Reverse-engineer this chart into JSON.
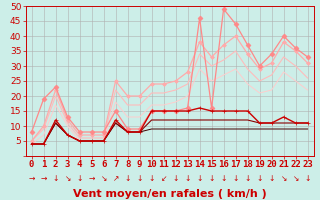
{
  "background_color": "#cceee8",
  "grid_color": "#b0b0b0",
  "xlabel": "Vent moyen/en rafales ( km/h )",
  "xlim": [
    -0.5,
    23.5
  ],
  "ylim": [
    0,
    50
  ],
  "yticks": [
    0,
    5,
    10,
    15,
    20,
    25,
    30,
    35,
    40,
    45,
    50
  ],
  "xticks": [
    0,
    1,
    2,
    3,
    4,
    5,
    6,
    7,
    8,
    9,
    10,
    11,
    12,
    13,
    14,
    15,
    16,
    17,
    18,
    19,
    20,
    21,
    22,
    23
  ],
  "series": [
    {
      "x": [
        0,
        1,
        2,
        3,
        4,
        5,
        6,
        7,
        8,
        9,
        10,
        11,
        12,
        13,
        14,
        15,
        16,
        17,
        18,
        19,
        20,
        21,
        22,
        23
      ],
      "y": [
        4,
        4,
        12,
        7,
        5,
        5,
        5,
        12,
        8,
        8,
        15,
        15,
        15,
        15,
        16,
        15,
        15,
        15,
        15,
        11,
        11,
        13,
        11,
        11
      ],
      "color": "#cc0000",
      "linewidth": 1.0,
      "marker": "+",
      "markersize": 3.5,
      "zorder": 5
    },
    {
      "x": [
        0,
        1,
        2,
        3,
        4,
        5,
        6,
        7,
        8,
        9,
        10,
        11,
        12,
        13,
        14,
        15,
        16,
        17,
        18,
        19,
        20,
        21,
        22,
        23
      ],
      "y": [
        4,
        4,
        11,
        7,
        5,
        5,
        5,
        11,
        8,
        8,
        12,
        12,
        12,
        12,
        12,
        12,
        12,
        12,
        12,
        11,
        11,
        11,
        11,
        11
      ],
      "color": "#880000",
      "linewidth": 0.8,
      "marker": null,
      "markersize": 0,
      "zorder": 4
    },
    {
      "x": [
        0,
        1,
        2,
        3,
        4,
        5,
        6,
        7,
        8,
        9,
        10,
        11,
        12,
        13,
        14,
        15,
        16,
        17,
        18,
        19,
        20,
        21,
        22,
        23
      ],
      "y": [
        4,
        4,
        11,
        7,
        5,
        5,
        5,
        11,
        8,
        8,
        9,
        9,
        9,
        9,
        9,
        9,
        9,
        9,
        9,
        9,
        9,
        9,
        9,
        9
      ],
      "color": "#440000",
      "linewidth": 0.7,
      "marker": null,
      "markersize": 0,
      "zorder": 3
    },
    {
      "x": [
        0,
        1,
        2,
        3,
        4,
        5,
        6,
        7,
        8,
        9,
        10,
        11,
        12,
        13,
        14,
        15,
        16,
        17,
        18,
        19,
        20,
        21,
        22,
        23
      ],
      "y": [
        8,
        19,
        23,
        13,
        8,
        8,
        8,
        15,
        9,
        9,
        15,
        15,
        15,
        16,
        46,
        16,
        49,
        44,
        37,
        30,
        34,
        40,
        36,
        33
      ],
      "color": "#ff8888",
      "linewidth": 0.9,
      "marker": "D",
      "markersize": 2.5,
      "zorder": 2
    },
    {
      "x": [
        0,
        1,
        2,
        3,
        4,
        5,
        6,
        7,
        8,
        9,
        10,
        11,
        12,
        13,
        14,
        15,
        16,
        17,
        18,
        19,
        20,
        21,
        22,
        23
      ],
      "y": [
        5,
        10,
        22,
        12,
        7,
        7,
        7,
        25,
        20,
        20,
        24,
        24,
        25,
        28,
        38,
        33,
        37,
        40,
        34,
        29,
        31,
        38,
        35,
        31
      ],
      "color": "#ffaaaa",
      "linewidth": 0.9,
      "marker": "D",
      "markersize": 2.0,
      "zorder": 2
    },
    {
      "x": [
        0,
        1,
        2,
        3,
        4,
        5,
        6,
        7,
        8,
        9,
        10,
        11,
        12,
        13,
        14,
        15,
        16,
        17,
        18,
        19,
        20,
        21,
        22,
        23
      ],
      "y": [
        5,
        9,
        20,
        11,
        6,
        6,
        6,
        22,
        17,
        17,
        21,
        21,
        22,
        24,
        34,
        30,
        32,
        35,
        29,
        25,
        27,
        33,
        30,
        26
      ],
      "color": "#ffbbbb",
      "linewidth": 0.8,
      "marker": null,
      "markersize": 0,
      "zorder": 2
    },
    {
      "x": [
        0,
        1,
        2,
        3,
        4,
        5,
        6,
        7,
        8,
        9,
        10,
        11,
        12,
        13,
        14,
        15,
        16,
        17,
        18,
        19,
        20,
        21,
        22,
        23
      ],
      "y": [
        4,
        7,
        17,
        10,
        5,
        5,
        5,
        18,
        13,
        13,
        17,
        17,
        18,
        20,
        29,
        25,
        27,
        29,
        24,
        21,
        22,
        28,
        25,
        22
      ],
      "color": "#ffcccc",
      "linewidth": 0.7,
      "marker": null,
      "markersize": 0,
      "zorder": 1
    }
  ],
  "arrows": [
    "→",
    "→",
    "↓",
    "↘",
    "↓",
    "→",
    "↘",
    "↗",
    "↓",
    "↓",
    "↓",
    "↙",
    "↓",
    "↓",
    "↓",
    "↓",
    "↓",
    "↓",
    "↓",
    "↓",
    "↓",
    "↘",
    "↘",
    "↓"
  ],
  "tick_fontsize": 6.5,
  "xlabel_fontsize": 8
}
